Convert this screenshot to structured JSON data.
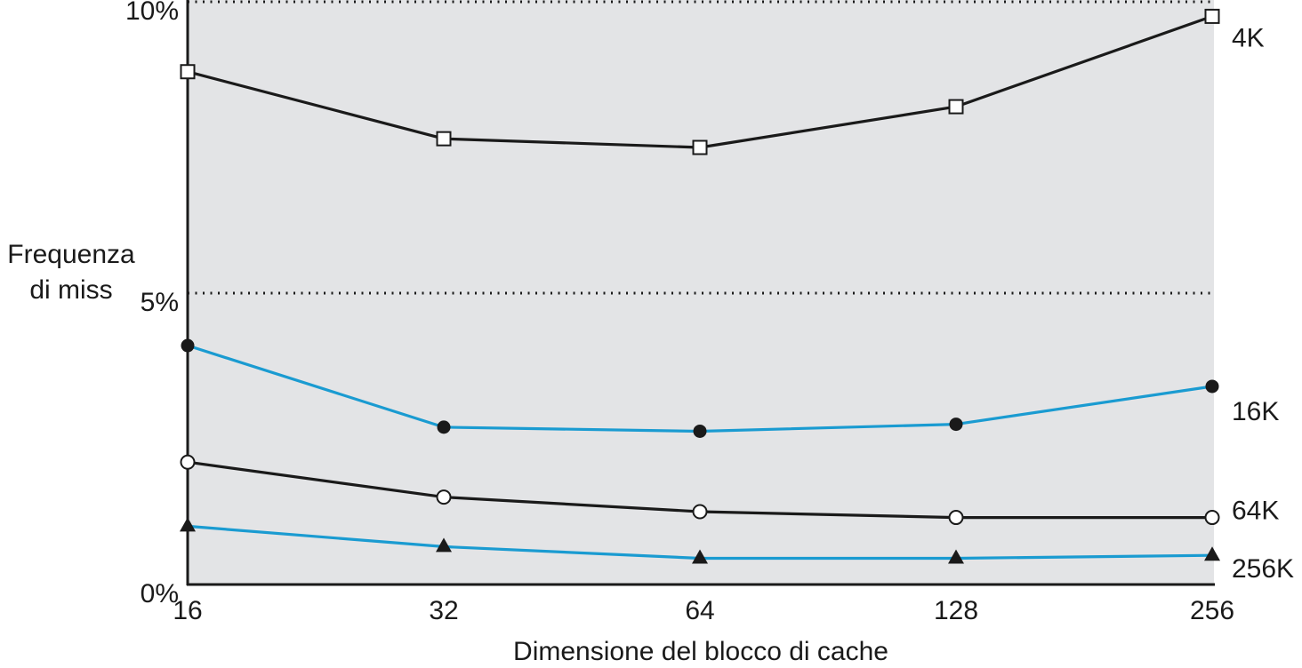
{
  "chart_data": {
    "type": "line",
    "title": "",
    "xlabel": "Dimensione del blocco di cache",
    "ylabel_lines": [
      "Frequenza",
      "di miss"
    ],
    "x_scale": "log2",
    "categories": [
      16,
      32,
      64,
      128,
      256
    ],
    "x_tick_labels": [
      "16",
      "32",
      "64",
      "128",
      "256"
    ],
    "ylim": [
      0,
      10
    ],
    "y_ticks": [
      {
        "value": 0,
        "label": "0%"
      },
      {
        "value": 5,
        "label": "5%"
      },
      {
        "value": 10,
        "label": "10%"
      }
    ],
    "gridlines": "dotted at 5% and 10%",
    "series": [
      {
        "name": "4K",
        "color": "#1a1a1a",
        "marker": "square-open",
        "values": [
          8.8,
          7.65,
          7.5,
          8.2,
          9.75
        ]
      },
      {
        "name": "16K",
        "color": "#1a9bd1",
        "marker": "circle-filled",
        "values": [
          4.1,
          2.7,
          2.63,
          2.75,
          3.4
        ]
      },
      {
        "name": "64K",
        "color": "#1a1a1a",
        "marker": "circle-open",
        "values": [
          2.1,
          1.5,
          1.25,
          1.15,
          1.15
        ]
      },
      {
        "name": "256K",
        "color": "#1a9bd1",
        "marker": "triangle-filled",
        "values": [
          1.0,
          0.65,
          0.45,
          0.45,
          0.5
        ]
      }
    ]
  }
}
